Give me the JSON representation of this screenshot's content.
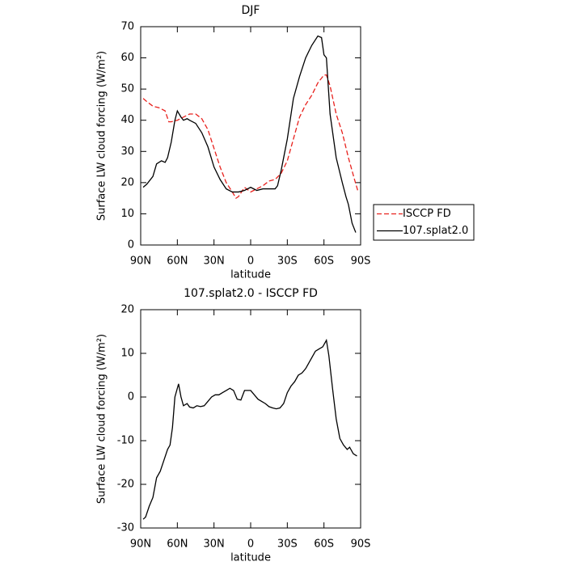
{
  "chart_data": [
    {
      "type": "line",
      "title": "DJF",
      "xlabel": "latitude",
      "ylabel": "Surface LW cloud forcing (W/m²)",
      "xlim": [
        90,
        -90
      ],
      "xticks": [
        {
          "value": 90,
          "label": "90N"
        },
        {
          "value": 60,
          "label": "60N"
        },
        {
          "value": 30,
          "label": "30N"
        },
        0,
        {
          "value": -30,
          "label": "30S"
        },
        {
          "value": -60,
          "label": "60S"
        },
        {
          "value": -90,
          "label": "90S"
        }
      ],
      "ylim": [
        0,
        70
      ],
      "yticks": [
        0,
        10,
        20,
        30,
        40,
        50,
        60,
        70
      ],
      "legend": "right",
      "series": [
        {
          "name": "ISCCP FD",
          "color": "#e8211d",
          "dashed": true,
          "x": [
            88,
            85,
            80,
            75,
            70,
            67,
            65,
            60,
            55,
            50,
            45,
            40,
            35,
            30,
            25,
            20,
            15,
            12,
            10,
            5,
            0,
            -5,
            -10,
            -15,
            -20,
            -25,
            -30,
            -35,
            -40,
            -45,
            -50,
            -55,
            -60,
            -62,
            -65,
            -70,
            -75,
            -80,
            -85,
            -88
          ],
          "values": [
            47,
            46,
            44.5,
            44,
            43,
            39.5,
            39.5,
            40,
            41,
            42,
            42,
            40.5,
            37,
            31,
            25,
            20,
            17,
            15,
            15.5,
            18.5,
            17,
            18,
            19,
            20.5,
            21,
            23,
            27,
            34,
            41,
            45,
            48,
            52,
            54.5,
            54.5,
            51,
            42,
            36,
            28,
            21,
            17
          ]
        },
        {
          "name": "107.splat2.0",
          "color": "#000000",
          "dashed": false,
          "x": [
            88,
            85,
            80,
            77,
            73,
            70,
            68,
            65,
            62,
            60,
            57,
            55,
            52,
            50,
            45,
            40,
            35,
            30,
            25,
            20,
            15,
            10,
            5,
            0,
            -5,
            -10,
            -15,
            -20,
            -22,
            -25,
            -30,
            -35,
            -40,
            -45,
            -50,
            -55,
            -58,
            -60,
            -62,
            -65,
            -70,
            -75,
            -78,
            -80,
            -83,
            -86
          ],
          "values": [
            18.5,
            19.5,
            22,
            26,
            27,
            26.5,
            28,
            33,
            40,
            43,
            41,
            40,
            40.5,
            40,
            39,
            36,
            31.5,
            25,
            21,
            18,
            17,
            17,
            17.5,
            18.5,
            17.5,
            18,
            18,
            18,
            19,
            24,
            34,
            47,
            54,
            60,
            64,
            67,
            66.5,
            61,
            60,
            42,
            28,
            20,
            15.5,
            13,
            7,
            4
          ]
        }
      ]
    },
    {
      "type": "line",
      "title": "107.splat2.0 - ISCCP FD",
      "xlabel": "latitude",
      "ylabel": "Surface LW cloud forcing (W/m²)",
      "xlim": [
        90,
        -90
      ],
      "xticks": [
        {
          "value": 90,
          "label": "90N"
        },
        {
          "value": 60,
          "label": "60N"
        },
        {
          "value": 30,
          "label": "30N"
        },
        0,
        {
          "value": -30,
          "label": "30S"
        },
        {
          "value": -60,
          "label": "60S"
        },
        {
          "value": -90,
          "label": "90S"
        }
      ],
      "ylim": [
        -30,
        20
      ],
      "yticks": [
        -30,
        -20,
        -10,
        0,
        10,
        20
      ],
      "series": [
        {
          "color": "#000000",
          "dashed": false,
          "x": [
            88,
            86,
            83,
            80,
            77,
            74,
            71,
            68,
            66,
            64,
            62,
            59,
            57,
            55,
            52,
            50,
            47,
            44,
            41,
            38,
            35,
            32,
            29,
            26,
            23,
            20,
            17,
            14,
            11,
            8,
            5,
            2,
            0,
            -3,
            -6,
            -9,
            -12,
            -15,
            -18,
            -21,
            -24,
            -27,
            -30,
            -33,
            -36,
            -39,
            -42,
            -45,
            -48,
            -50,
            -53,
            -56,
            -59,
            -62,
            -64,
            -67,
            -70,
            -73,
            -76,
            -79,
            -81,
            -84,
            -87
          ],
          "values": [
            -28,
            -27.5,
            -25,
            -23,
            -18.5,
            -17,
            -14.5,
            -12,
            -11,
            -7,
            0,
            3,
            0,
            -2,
            -1.5,
            -2.3,
            -2.5,
            -2,
            -2.2,
            -2,
            -1,
            0,
            0.5,
            0.5,
            1,
            1.5,
            2,
            1.5,
            -0.5,
            -0.7,
            1.5,
            1.5,
            1.5,
            0.5,
            -0.5,
            -1,
            -1.5,
            -2.2,
            -2.5,
            -2.7,
            -2.5,
            -1.5,
            1,
            2.5,
            3.5,
            5,
            5.5,
            6.5,
            8,
            9,
            10.5,
            11,
            11.5,
            13,
            9.5,
            2,
            -5,
            -9.5,
            -11,
            -12,
            -11.5,
            -13,
            -13.5
          ]
        }
      ]
    }
  ]
}
